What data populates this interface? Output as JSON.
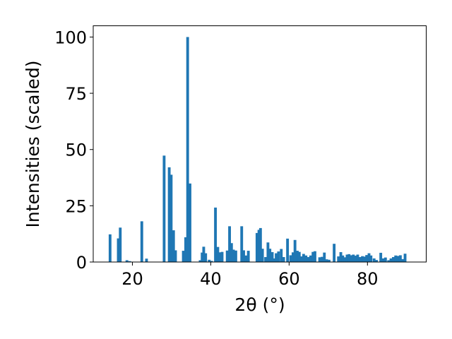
{
  "chart_data": {
    "type": "bar",
    "xlabel": "2θ (°)",
    "ylabel": "Intensities (scaled)",
    "xlim": [
      10,
      95
    ],
    "ylim": [
      0,
      105
    ],
    "xticks": [
      20,
      40,
      60,
      80
    ],
    "yticks": [
      0,
      25,
      50,
      75,
      100
    ],
    "bar_width": 0.7,
    "bar_color": "#1f77b4",
    "grid": false,
    "bars": [
      {
        "x": 14.3,
        "y": 12.3
      },
      {
        "x": 16.4,
        "y": 10.5
      },
      {
        "x": 16.9,
        "y": 15.3
      },
      {
        "x": 18.6,
        "y": 0.8
      },
      {
        "x": 19.3,
        "y": 0.4
      },
      {
        "x": 22.4,
        "y": 18.1
      },
      {
        "x": 23.6,
        "y": 1.5
      },
      {
        "x": 28.1,
        "y": 47.3
      },
      {
        "x": 29.4,
        "y": 42.1
      },
      {
        "x": 29.9,
        "y": 38.8
      },
      {
        "x": 30.5,
        "y": 14.1
      },
      {
        "x": 31.0,
        "y": 5.2
      },
      {
        "x": 33.0,
        "y": 5.0
      },
      {
        "x": 33.6,
        "y": 11.0
      },
      {
        "x": 34.1,
        "y": 100.0
      },
      {
        "x": 34.7,
        "y": 34.9
      },
      {
        "x": 37.3,
        "y": 0.8
      },
      {
        "x": 37.8,
        "y": 4.2
      },
      {
        "x": 38.2,
        "y": 6.8
      },
      {
        "x": 38.7,
        "y": 3.9
      },
      {
        "x": 39.6,
        "y": 1.0
      },
      {
        "x": 40.2,
        "y": 0.5
      },
      {
        "x": 41.2,
        "y": 24.2
      },
      {
        "x": 41.8,
        "y": 6.7
      },
      {
        "x": 42.3,
        "y": 4.3
      },
      {
        "x": 42.9,
        "y": 4.5
      },
      {
        "x": 44.2,
        "y": 5.1
      },
      {
        "x": 44.8,
        "y": 15.9
      },
      {
        "x": 45.3,
        "y": 8.4
      },
      {
        "x": 45.8,
        "y": 5.5
      },
      {
        "x": 46.4,
        "y": 5.1
      },
      {
        "x": 47.9,
        "y": 15.9
      },
      {
        "x": 48.4,
        "y": 5.2
      },
      {
        "x": 49.0,
        "y": 2.9
      },
      {
        "x": 49.6,
        "y": 5.0
      },
      {
        "x": 51.8,
        "y": 12.9
      },
      {
        "x": 52.3,
        "y": 14.3
      },
      {
        "x": 52.7,
        "y": 15.1
      },
      {
        "x": 53.2,
        "y": 5.9
      },
      {
        "x": 54.0,
        "y": 2.2
      },
      {
        "x": 54.6,
        "y": 8.7
      },
      {
        "x": 55.1,
        "y": 5.9
      },
      {
        "x": 55.7,
        "y": 4.4
      },
      {
        "x": 56.2,
        "y": 1.6
      },
      {
        "x": 56.7,
        "y": 3.9
      },
      {
        "x": 57.3,
        "y": 4.7
      },
      {
        "x": 58.0,
        "y": 5.8
      },
      {
        "x": 58.6,
        "y": 2.2
      },
      {
        "x": 59.6,
        "y": 10.4
      },
      {
        "x": 60.4,
        "y": 3.0
      },
      {
        "x": 61.0,
        "y": 4.3
      },
      {
        "x": 61.5,
        "y": 9.8
      },
      {
        "x": 62.1,
        "y": 5.0
      },
      {
        "x": 62.6,
        "y": 4.5
      },
      {
        "x": 63.2,
        "y": 2.5
      },
      {
        "x": 63.7,
        "y": 3.6
      },
      {
        "x": 64.3,
        "y": 2.9
      },
      {
        "x": 64.9,
        "y": 2.2
      },
      {
        "x": 65.5,
        "y": 2.9
      },
      {
        "x": 66.1,
        "y": 4.5
      },
      {
        "x": 66.6,
        "y": 4.8
      },
      {
        "x": 67.8,
        "y": 2.1
      },
      {
        "x": 68.4,
        "y": 2.3
      },
      {
        "x": 69.0,
        "y": 4.2
      },
      {
        "x": 69.6,
        "y": 1.2
      },
      {
        "x": 70.2,
        "y": 1.0
      },
      {
        "x": 71.5,
        "y": 8.1
      },
      {
        "x": 72.6,
        "y": 2.5
      },
      {
        "x": 73.2,
        "y": 4.4
      },
      {
        "x": 73.7,
        "y": 2.9
      },
      {
        "x": 74.2,
        "y": 2.1
      },
      {
        "x": 74.8,
        "y": 3.3
      },
      {
        "x": 75.3,
        "y": 3.5
      },
      {
        "x": 75.9,
        "y": 3.0
      },
      {
        "x": 76.4,
        "y": 3.3
      },
      {
        "x": 77.0,
        "y": 2.8
      },
      {
        "x": 77.5,
        "y": 3.3
      },
      {
        "x": 78.1,
        "y": 2.2
      },
      {
        "x": 78.7,
        "y": 2.6
      },
      {
        "x": 79.2,
        "y": 2.4
      },
      {
        "x": 79.8,
        "y": 3.1
      },
      {
        "x": 80.4,
        "y": 3.9
      },
      {
        "x": 80.9,
        "y": 2.9
      },
      {
        "x": 81.7,
        "y": 1.6
      },
      {
        "x": 82.3,
        "y": 0.9
      },
      {
        "x": 83.4,
        "y": 4.1
      },
      {
        "x": 84.0,
        "y": 1.6
      },
      {
        "x": 84.6,
        "y": 2.0
      },
      {
        "x": 85.4,
        "y": 0.8
      },
      {
        "x": 86.0,
        "y": 1.6
      },
      {
        "x": 86.6,
        "y": 2.2
      },
      {
        "x": 87.2,
        "y": 2.9
      },
      {
        "x": 87.8,
        "y": 2.7
      },
      {
        "x": 88.4,
        "y": 3.0
      },
      {
        "x": 89.0,
        "y": 1.3
      },
      {
        "x": 89.6,
        "y": 3.7
      }
    ]
  }
}
